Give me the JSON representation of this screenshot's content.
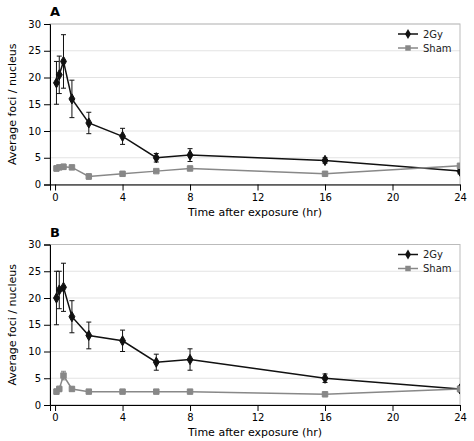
{
  "chart_data": [
    {
      "type": "line",
      "title": "A",
      "xlabel": "Time after exposure (hr)",
      "ylabel": "Average foci / nucleus",
      "x": [
        0.083,
        0.25,
        0.5,
        1,
        2,
        4,
        6,
        8,
        16,
        24
      ],
      "series": [
        {
          "name": "2Gy",
          "color": "#111111",
          "marker": "diamond",
          "values": [
            19.0,
            20.5,
            23.0,
            16.0,
            11.5,
            9.0,
            5.0,
            5.5,
            4.5,
            2.5
          ],
          "errors": [
            4.0,
            3.5,
            5.0,
            3.5,
            2.0,
            1.5,
            0.8,
            1.2,
            0.5,
            0.5
          ]
        },
        {
          "name": "Sham",
          "color": "#888888",
          "marker": "square",
          "values": [
            3.0,
            3.2,
            3.3,
            3.2,
            1.5,
            2.0,
            2.5,
            3.0,
            2.0,
            3.5
          ],
          "errors": [
            0.5,
            0.4,
            0.5,
            0.4,
            0.5,
            0.3,
            0.3,
            0.4,
            0.3,
            0.4
          ]
        }
      ],
      "xlim": [
        -0.3,
        24
      ],
      "xticks": [
        0,
        4,
        8,
        12,
        16,
        20,
        24
      ],
      "ylim": [
        0,
        30
      ],
      "yticks": [
        0,
        5,
        10,
        15,
        20,
        25,
        30
      ],
      "grid": true,
      "legend": "upper right"
    },
    {
      "type": "line",
      "title": "B",
      "xlabel": "Time after exposure (hr)",
      "ylabel": "Average foci / nucleus",
      "x": [
        0.083,
        0.25,
        0.5,
        1,
        2,
        4,
        6,
        8,
        16,
        24
      ],
      "series": [
        {
          "name": "2Gy",
          "color": "#111111",
          "marker": "diamond",
          "values": [
            20.0,
            21.5,
            22.0,
            16.5,
            13.0,
            12.0,
            8.0,
            8.5,
            5.0,
            3.0
          ],
          "errors": [
            5.0,
            3.5,
            4.5,
            3.0,
            2.5,
            2.0,
            1.5,
            2.0,
            0.8,
            0.5
          ]
        },
        {
          "name": "Sham",
          "color": "#888888",
          "marker": "square",
          "values": [
            2.5,
            3.0,
            5.5,
            3.0,
            2.5,
            2.5,
            2.5,
            2.5,
            2.0,
            3.0
          ],
          "errors": [
            0.5,
            0.5,
            0.8,
            0.4,
            0.3,
            0.3,
            0.3,
            0.3,
            0.3,
            0.4
          ]
        }
      ],
      "xlim": [
        -0.3,
        24
      ],
      "xticks": [
        0,
        4,
        8,
        12,
        16,
        20,
        24
      ],
      "ylim": [
        0,
        30
      ],
      "yticks": [
        0,
        5,
        10,
        15,
        20,
        25,
        30
      ],
      "grid": true,
      "legend": "upper right"
    }
  ]
}
